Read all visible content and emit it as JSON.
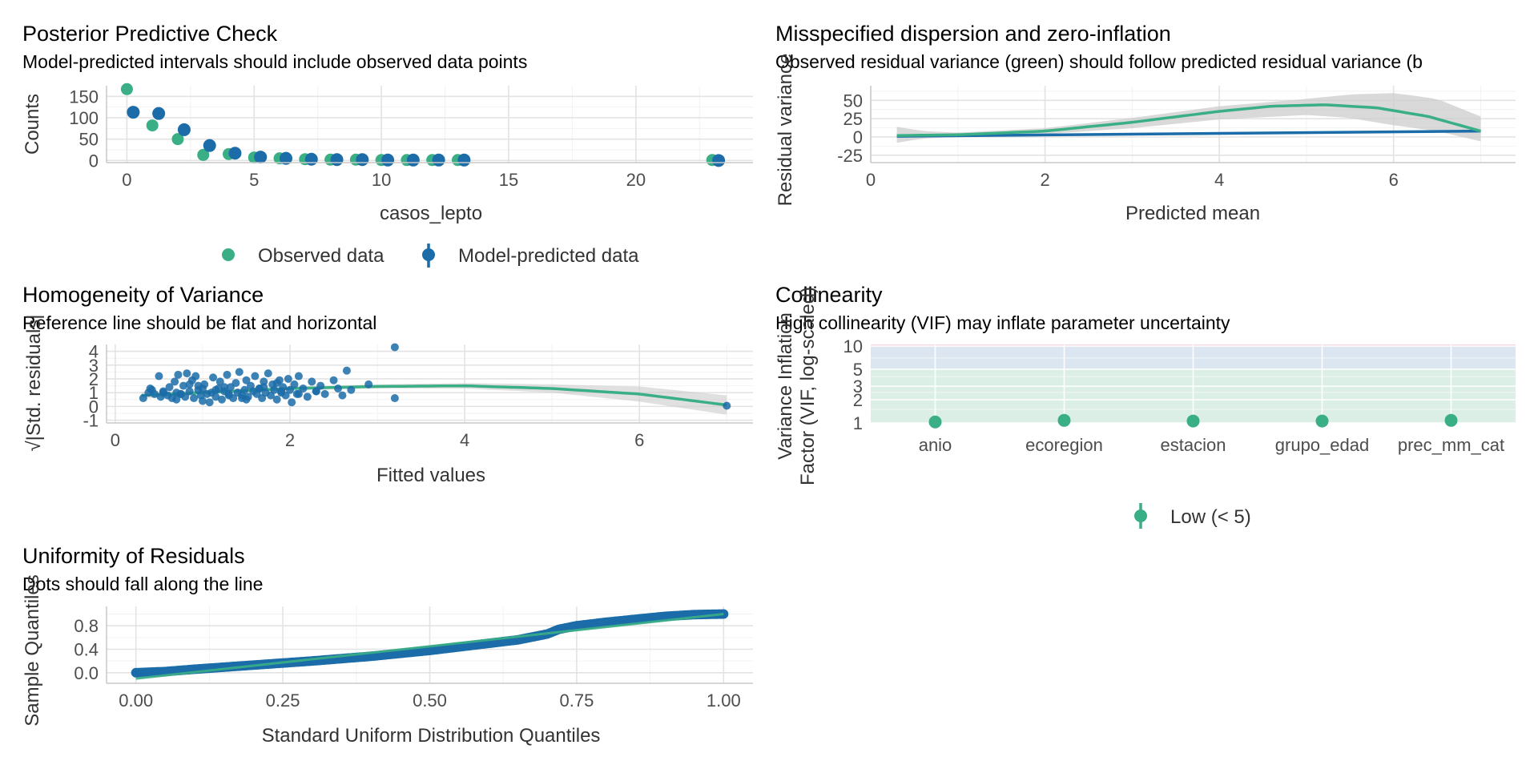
{
  "colors": {
    "green": "#3aaf85",
    "blue": "#1b6ca8",
    "band_gray": "#cccccc",
    "zone_low": "#dcefe6",
    "zone_mod": "#dce6f0",
    "zone_high": "#f5d6dc"
  },
  "chart_data": [
    {
      "id": "ppc",
      "type": "scatter",
      "title": "Posterior Predictive Check",
      "subtitle": "Model-predicted intervals should include observed data points",
      "xlabel": "casos_lepto",
      "ylabel": "Counts",
      "xlim": [
        -0.8,
        24.6
      ],
      "ylim": [
        -5,
        175
      ],
      "xticks": [
        0,
        5,
        10,
        15,
        20
      ],
      "yticks": [
        0,
        50,
        100,
        150
      ],
      "legend": {
        "placement": "bottom",
        "entries": [
          "Observed data",
          "Model-predicted data"
        ]
      },
      "series": [
        {
          "name": "Observed data",
          "x": [
            0,
            1,
            2,
            3,
            4,
            5,
            6,
            7,
            8,
            9,
            10,
            11,
            12,
            13,
            23
          ],
          "y": [
            167,
            82,
            50,
            13,
            15,
            7,
            5,
            3,
            2,
            2,
            1,
            1,
            1,
            1,
            1
          ]
        },
        {
          "name": "Model-predicted data",
          "x": [
            0.25,
            1.25,
            2.25,
            3.25,
            4.25,
            5.25,
            6.25,
            7.25,
            8.25,
            9.25,
            10.25,
            11.25,
            12.25,
            13.25,
            23.25
          ],
          "y": [
            113,
            110,
            72,
            35,
            17,
            8,
            5,
            3,
            2,
            2,
            1,
            1,
            1,
            1,
            0
          ],
          "lo": [
            104,
            102,
            64,
            29,
            12,
            5,
            3,
            1,
            0,
            0,
            0,
            0,
            0,
            0,
            0
          ],
          "hi": [
            124,
            120,
            80,
            41,
            22,
            11,
            8,
            5,
            4,
            4,
            3,
            3,
            3,
            3,
            2
          ]
        }
      ]
    },
    {
      "id": "disp",
      "type": "line",
      "title": "Misspecified dispersion and zero-inflation",
      "subtitle": "Observed residual variance (green) should follow predicted residual variance (b",
      "xlabel": "Predicted mean",
      "ylabel": "Residual variance",
      "xlim": [
        0,
        7.4
      ],
      "ylim": [
        -35,
        70
      ],
      "xticks": [
        0,
        2,
        4,
        6
      ],
      "yticks": [
        -25,
        0,
        25,
        50
      ],
      "ytick_labels": [
        "-25",
        "0",
        "25",
        "50"
      ],
      "series": [
        {
          "name": "observed",
          "x": [
            0.3,
            1,
            2,
            3,
            4,
            4.6,
            5.2,
            5.8,
            6.4,
            7
          ],
          "y": [
            2,
            3,
            8,
            20,
            35,
            42,
            44,
            40,
            28,
            8
          ]
        },
        {
          "name": "predicted",
          "x": [
            0.3,
            7
          ],
          "y": [
            1,
            8
          ]
        }
      ],
      "band": {
        "x": [
          0.3,
          0.6,
          1,
          2,
          3,
          4,
          5,
          5.5,
          6,
          6.5,
          7
        ],
        "lo": [
          -8,
          -2,
          0,
          4,
          12,
          24,
          30,
          26,
          16,
          8,
          -6
        ],
        "hi": [
          14,
          8,
          6,
          12,
          26,
          42,
          52,
          58,
          60,
          52,
          28
        ]
      }
    },
    {
      "id": "homog",
      "type": "scatter",
      "title": "Homogeneity of Variance",
      "subtitle": "Reference line should be flat and horizontal",
      "xlabel": "Fitted values",
      "ylabel": "√|Std. residuals|",
      "xlim": [
        -0.1,
        7.3
      ],
      "ylim": [
        -1.2,
        4.5
      ],
      "xticks": [
        0,
        2,
        4,
        6
      ],
      "yticks": [
        -1,
        0,
        1,
        2,
        3,
        4
      ],
      "ytick_labels": [
        "-1",
        "0",
        "1",
        "2",
        "3",
        "4"
      ],
      "smooth": {
        "x": [
          0.3,
          1,
          2,
          3,
          4,
          5,
          6,
          7
        ],
        "y": [
          0.8,
          1.0,
          1.3,
          1.45,
          1.5,
          1.3,
          0.9,
          0.1
        ]
      },
      "band": {
        "x": [
          0.3,
          1,
          2,
          3,
          4,
          5,
          6,
          7
        ],
        "lo": [
          0.55,
          0.85,
          1.15,
          1.3,
          1.3,
          1.0,
          0.35,
          -0.6
        ],
        "hi": [
          1.05,
          1.15,
          1.45,
          1.6,
          1.7,
          1.6,
          1.45,
          0.8
        ]
      },
      "points": {
        "x": [
          0.32,
          0.38,
          0.42,
          0.45,
          0.5,
          0.52,
          0.55,
          0.6,
          0.62,
          0.65,
          0.68,
          0.7,
          0.72,
          0.75,
          0.78,
          0.8,
          0.82,
          0.85,
          0.88,
          0.9,
          0.92,
          0.95,
          0.98,
          1.0,
          1.02,
          1.05,
          1.08,
          1.1,
          1.12,
          1.15,
          1.18,
          1.2,
          1.22,
          1.25,
          1.28,
          1.3,
          1.32,
          1.35,
          1.38,
          1.4,
          1.42,
          1.45,
          1.48,
          1.5,
          1.52,
          1.55,
          1.58,
          1.6,
          1.62,
          1.65,
          1.68,
          1.7,
          1.72,
          1.75,
          1.78,
          1.8,
          1.82,
          1.85,
          1.88,
          1.9,
          1.92,
          1.95,
          1.98,
          2.0,
          2.02,
          2.05,
          2.08,
          2.1,
          2.15,
          2.2,
          2.25,
          2.3,
          2.35,
          2.4,
          2.5,
          2.55,
          2.6,
          2.65,
          2.7,
          2.9,
          3.2,
          3.2,
          0.4,
          0.7,
          0.85,
          1.0,
          1.3,
          1.5,
          1.7,
          1.9,
          2.1,
          0.55,
          0.95,
          1.15,
          1.45,
          1.65,
          0.75,
          1.25,
          1.85,
          2.3,
          7.0
        ],
        "y": [
          0.6,
          1.0,
          1.2,
          0.9,
          2.2,
          0.7,
          1.1,
          0.8,
          1.4,
          0.6,
          1.8,
          1.0,
          2.3,
          0.9,
          1.5,
          0.7,
          2.4,
          1.1,
          1.9,
          0.6,
          2.2,
          1.2,
          0.8,
          0.4,
          1.6,
          0.9,
          0.3,
          1.0,
          2.1,
          0.7,
          1.3,
          1.8,
          0.5,
          1.1,
          2.3,
          0.9,
          1.4,
          0.6,
          1.7,
          1.0,
          2.5,
          0.8,
          1.2,
          1.9,
          0.7,
          1.5,
          1.1,
          2.2,
          0.9,
          1.3,
          0.6,
          1.8,
          1.0,
          2.4,
          0.8,
          1.6,
          1.2,
          0.5,
          1.9,
          1.0,
          1.4,
          0.8,
          2.0,
          1.2,
          0.3,
          1.6,
          0.9,
          2.2,
          1.3,
          0.7,
          1.8,
          1.1,
          1.5,
          0.9,
          1.9,
          1.3,
          0.8,
          2.6,
          1.2,
          1.6,
          4.3,
          0.6,
          1.3,
          0.5,
          1.6,
          1.3,
          0.8,
          0.5,
          1.4,
          1.1,
          0.9,
          1.0,
          1.5,
          1.2,
          0.6,
          1.3,
          0.9,
          1.4,
          1.7,
          1.1,
          0.05
        ]
      }
    },
    {
      "id": "vif",
      "type": "scatter",
      "title": "Collinearity",
      "subtitle": "High collinearity (VIF) may inflate parameter uncertainty",
      "xlabel": "",
      "ylabel_lines": [
        "Variance Inflation",
        "Factor (VIF, log-scaled)"
      ],
      "log_scale_y": true,
      "ylim": [
        1,
        10.5
      ],
      "yticks": [
        1,
        2,
        3,
        5,
        10
      ],
      "ytick_labels": [
        "1",
        "2",
        "3",
        "5",
        "10"
      ],
      "categories": [
        "anio",
        "ecoregion",
        "estacion",
        "grupo_edad",
        "prec_mm_cat"
      ],
      "values": [
        1.03,
        1.08,
        1.06,
        1.06,
        1.08
      ],
      "zones": [
        {
          "name": "low",
          "from": 1,
          "to": 5
        },
        {
          "name": "moderate",
          "from": 5,
          "to": 10
        },
        {
          "name": "high",
          "from": 10,
          "to": 10.5
        }
      ],
      "legend": {
        "placement": "bottom",
        "entries": [
          "Low (< 5)"
        ]
      }
    },
    {
      "id": "qq",
      "type": "scatter",
      "title": "Uniformity of Residuals",
      "subtitle": "Dots should fall along the line",
      "xlabel": "Standard Uniform Distribution Quantiles",
      "ylabel": "Sample Quantiles",
      "xlim": [
        -0.05,
        1.05
      ],
      "ylim": [
        -0.18,
        1.13
      ],
      "xticks": [
        0,
        0.25,
        0.5,
        0.75,
        1.0
      ],
      "xtick_labels": [
        "0.00",
        "0.25",
        "0.50",
        "0.75",
        "1.00"
      ],
      "yticks": [
        0,
        0.4,
        0.8
      ],
      "ytick_labels": [
        "0.0",
        "0.4",
        "0.8"
      ],
      "reference": {
        "x": [
          0,
          1
        ],
        "y": [
          -0.1,
          1.0
        ]
      },
      "curve": {
        "x": [
          0,
          0.05,
          0.1,
          0.2,
          0.3,
          0.4,
          0.5,
          0.55,
          0.6,
          0.65,
          0.7,
          0.72,
          0.75,
          0.8,
          0.85,
          0.9,
          0.95,
          1.0
        ],
        "y": [
          0.0,
          0.02,
          0.06,
          0.13,
          0.2,
          0.28,
          0.38,
          0.44,
          0.5,
          0.56,
          0.66,
          0.74,
          0.8,
          0.86,
          0.91,
          0.96,
          0.99,
          1.0
        ]
      }
    }
  ]
}
